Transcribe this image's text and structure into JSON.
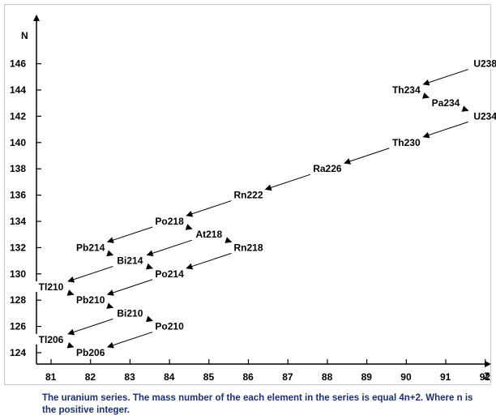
{
  "caption": "The uranium series. The mass number of the each element in the series is equal 4n+2. Where n is the positive integer.",
  "chart_data": {
    "type": "line",
    "xlabel": "Z",
    "ylabel": "N",
    "xlim": [
      80.9,
      92.4
    ],
    "ylim": [
      122.9,
      148.8
    ],
    "x_ticks": [
      81,
      82,
      83,
      84,
      85,
      86,
      87,
      88,
      89,
      90,
      91,
      92
    ],
    "y_ticks": [
      124,
      126,
      128,
      130,
      132,
      134,
      136,
      138,
      140,
      142,
      144,
      146
    ],
    "nodes": [
      {
        "label": "U238",
        "x": 92,
        "y": 146
      },
      {
        "label": "Th234",
        "x": 90,
        "y": 144
      },
      {
        "label": "Pa234",
        "x": 91,
        "y": 143
      },
      {
        "label": "U234",
        "x": 92,
        "y": 142
      },
      {
        "label": "Th230",
        "x": 90,
        "y": 140
      },
      {
        "label": "Ra226",
        "x": 88,
        "y": 138
      },
      {
        "label": "Rn222",
        "x": 86,
        "y": 136
      },
      {
        "label": "Po218",
        "x": 84,
        "y": 134
      },
      {
        "label": "At218",
        "x": 85,
        "y": 133
      },
      {
        "label": "Rn218",
        "x": 86,
        "y": 132
      },
      {
        "label": "Pb214",
        "x": 82,
        "y": 132
      },
      {
        "label": "Bi214",
        "x": 83,
        "y": 131
      },
      {
        "label": "Po214",
        "x": 84,
        "y": 130
      },
      {
        "label": "Tl210",
        "x": 81,
        "y": 129
      },
      {
        "label": "Pb210",
        "x": 82,
        "y": 128
      },
      {
        "label": "Bi210",
        "x": 83,
        "y": 127
      },
      {
        "label": "Po210",
        "x": 84,
        "y": 126
      },
      {
        "label": "Tl206",
        "x": 81,
        "y": 125
      },
      {
        "label": "Pb206",
        "x": 82,
        "y": 124
      }
    ],
    "transitions": [
      {
        "from": "U238",
        "to": "Th234"
      },
      {
        "from": "Th234",
        "to": "Pa234"
      },
      {
        "from": "Pa234",
        "to": "U234"
      },
      {
        "from": "U234",
        "to": "Th230"
      },
      {
        "from": "Th230",
        "to": "Ra226"
      },
      {
        "from": "Ra226",
        "to": "Rn222"
      },
      {
        "from": "Rn222",
        "to": "Po218"
      },
      {
        "from": "Po218",
        "to": "At218"
      },
      {
        "from": "At218",
        "to": "Rn218"
      },
      {
        "from": "Po218",
        "to": "Pb214"
      },
      {
        "from": "Rn218",
        "to": "Po214"
      },
      {
        "from": "Pb214",
        "to": "Bi214"
      },
      {
        "from": "At218",
        "to": "Bi214"
      },
      {
        "from": "Bi214",
        "to": "Po214"
      },
      {
        "from": "Bi214",
        "to": "Tl210"
      },
      {
        "from": "Po214",
        "to": "Pb210"
      },
      {
        "from": "Tl210",
        "to": "Pb210"
      },
      {
        "from": "Pb210",
        "to": "Bi210"
      },
      {
        "from": "Bi210",
        "to": "Po210"
      },
      {
        "from": "Bi210",
        "to": "Tl206"
      },
      {
        "from": "Po210",
        "to": "Pb206"
      },
      {
        "from": "Tl206",
        "to": "Pb206"
      }
    ]
  }
}
